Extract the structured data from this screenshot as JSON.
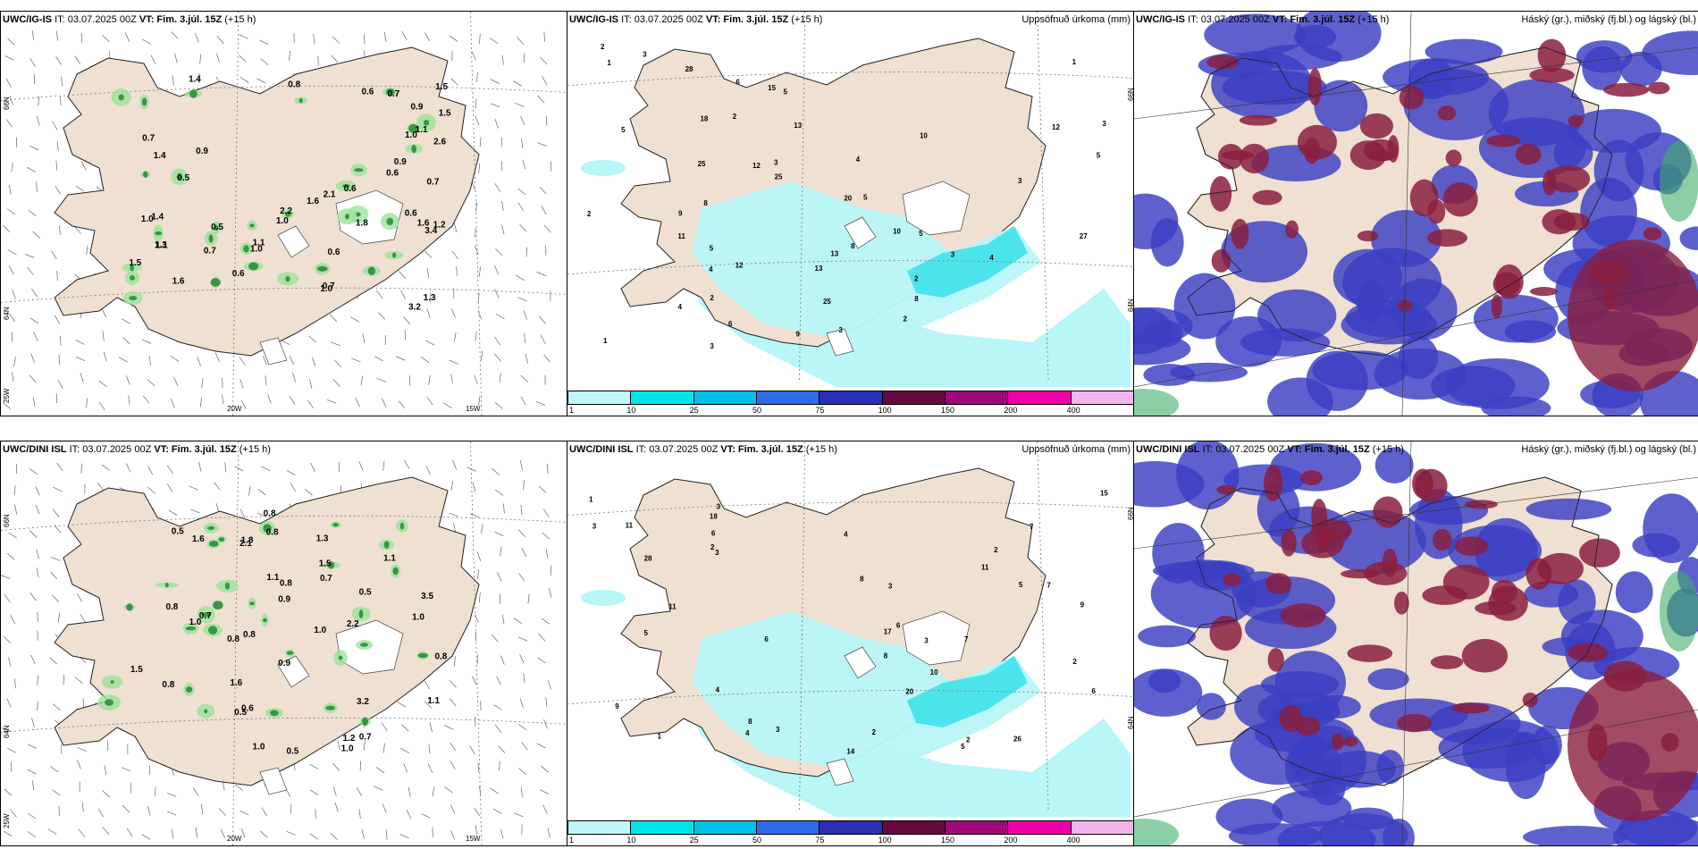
{
  "rows": [
    {
      "model": "UWC/IG-IS",
      "init": "IT: 03.07.2025 00Z",
      "vt_label": "VT:",
      "vt": "Fim. 3.júl. 15Z",
      "lead": "(+15 h)"
    },
    {
      "model": "UWC/DINI ISL",
      "init": "IT: 03.07.2025 00Z",
      "vt_label": "VT:",
      "vt": "Fim. 3.júl. 15Z",
      "lead": "(+15 h)"
    }
  ],
  "precip_title": "Uppsöfnuð úrkoma (mm)",
  "cloud_title": "Háský (gr.), miðský (fj.bl.) og lágský (bl.)",
  "axes": {
    "lat66": "66N",
    "lat64": "64N",
    "lon25": "25W",
    "lon20": "20W",
    "lon15": "15W"
  },
  "colorbar": {
    "ticks": [
      "1",
      "10",
      "25",
      "50",
      "75",
      "100",
      "150",
      "200",
      "400"
    ],
    "colors": [
      "#bff7fa",
      "#00e5ec",
      "#00bfe8",
      "#2f6be6",
      "#2a2fb5",
      "#650a3f",
      "#a0087a",
      "#ee00a8",
      "#f3b3ee"
    ]
  },
  "colors": {
    "land": "#efe0d1",
    "precip_light": "#b8f6f8",
    "precip_mid": "#3fe2ea",
    "wind_green": "#2e8b3d",
    "cloud_high": "#3a3ec2",
    "cloud_mid": "#8a1e3f",
    "cloud_low": "#3fae6b"
  },
  "wind_labels": [
    [
      "0.9",
      "1.1",
      "0.7",
      "0.6",
      "1.6",
      "0.7",
      "3.2",
      "0.5",
      "1.6",
      "1.4",
      "0.8",
      "1.5",
      "2.1",
      "2.6",
      "0.6",
      "1.0",
      "1.2",
      "1.0",
      "1.3",
      "0.9",
      "0.9",
      "0.7",
      "1.3",
      "1.8",
      "1.5",
      "1.6",
      "1.0",
      "1.1",
      "1.4",
      "0.6",
      "3.4",
      "0.6",
      "2.2",
      "1.1",
      "1.4",
      "1.0",
      "0.6",
      "0.7",
      "1.0",
      "1.5",
      "0.7",
      "0.5",
      "0.6"
    ],
    [
      "0.5",
      "0.8",
      "1.0",
      "3.5",
      "0.8",
      "2.2",
      "1.5",
      "0.8",
      "0.9",
      "3.2",
      "0.8",
      "1.0",
      "0.7",
      "0.8",
      "2.1",
      "1.3",
      "0.8",
      "0.8",
      "1.5",
      "0.6",
      "1.0",
      "1.6",
      "0.9",
      "1.1",
      "0.5",
      "1.1",
      "1.0",
      "0.7",
      "1.2",
      "0.5",
      "0.7",
      "0.8",
      "1.1",
      "1.6",
      "1.0",
      "0.5",
      "1.8"
    ]
  ],
  "precip_labels": [
    [
      "1",
      "2",
      "2",
      "1",
      "3",
      "2",
      "5",
      "12",
      "1",
      "3",
      "4",
      "5",
      "3",
      "11",
      "13",
      "12",
      "13",
      "4",
      "2",
      "3",
      "5",
      "25",
      "6",
      "8",
      "9",
      "8",
      "5",
      "4",
      "9",
      "15",
      "10",
      "6",
      "12",
      "27",
      "20",
      "25",
      "28",
      "25",
      "8",
      "10",
      "18",
      "3",
      "5",
      "13",
      "3",
      "4",
      "2",
      "3",
      "2",
      "5"
    ],
    [
      "2",
      "1",
      "2",
      "3",
      "3",
      "2",
      "4",
      "2",
      "3",
      "8",
      "10",
      "11",
      "7",
      "6",
      "20",
      "8",
      "9",
      "9",
      "26",
      "18",
      "14",
      "28",
      "7",
      "6",
      "5",
      "6",
      "17",
      "15",
      "7",
      "11",
      "3",
      "3",
      "4",
      "5",
      "6",
      "5",
      "11",
      "1",
      "2",
      "4",
      "3",
      "8"
    ]
  ]
}
